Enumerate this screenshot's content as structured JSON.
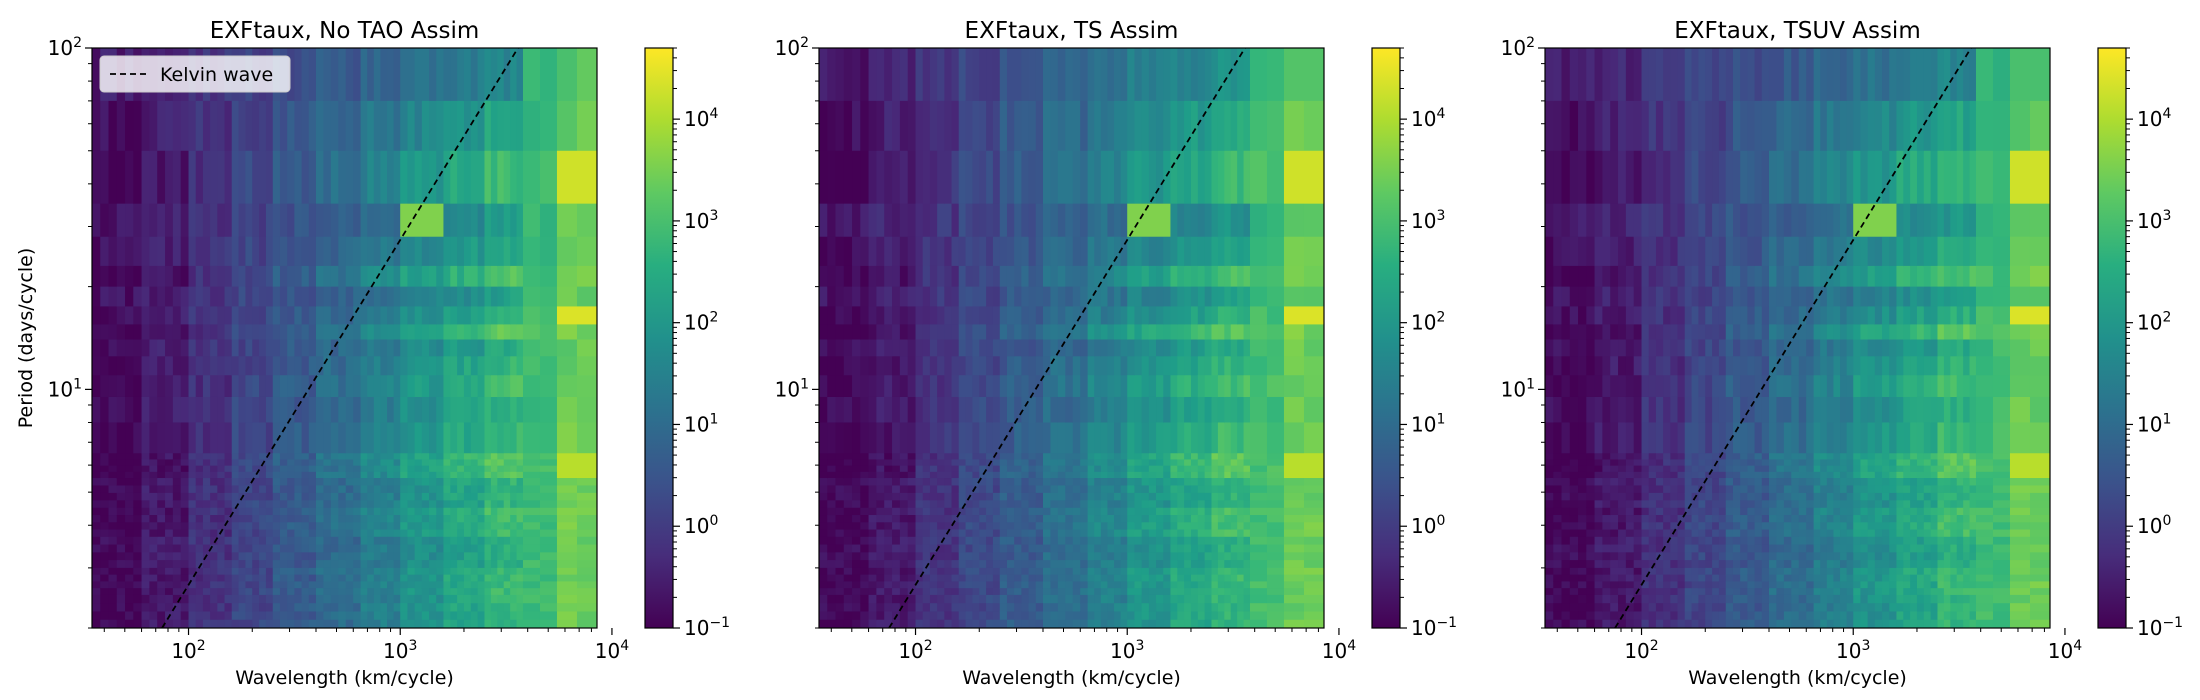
{
  "chart_data": [
    {
      "type": "heatmap",
      "title": "EXFtaux, No TAO Assim",
      "xlabel": "Wavelength (km/cycle)",
      "ylabel": "Period (days/cycle)",
      "x_scale": "log",
      "y_scale": "log",
      "xlim": [
        35,
        8500
      ],
      "ylim": [
        2,
        100
      ],
      "x_ticks": [
        {
          "value": 100,
          "base": "10",
          "exp": "2"
        },
        {
          "value": 1000,
          "base": "10",
          "exp": "3"
        },
        {
          "value": 10000,
          "base": "10",
          "exp": "4"
        }
      ],
      "y_ticks": [
        {
          "value": 10,
          "base": "10",
          "exp": "1"
        },
        {
          "value": 100,
          "base": "10",
          "exp": "2"
        }
      ],
      "kelvin_wave": {
        "label": "Kelvin wave",
        "x": [
          75,
          3600
        ],
        "y": [
          2,
          100
        ]
      },
      "legend_location": "upper left",
      "colorbar": {
        "scale": "log",
        "range": [
          0.1,
          50000
        ],
        "ticks": [
          {
            "value": 0.1,
            "base": "10",
            "exp": "−1"
          },
          {
            "value": 1,
            "base": "10",
            "exp": "0"
          },
          {
            "value": 10,
            "base": "10",
            "exp": "1"
          },
          {
            "value": 100,
            "base": "10",
            "exp": "2"
          },
          {
            "value": 1000,
            "base": "10",
            "exp": "3"
          },
          {
            "value": 10000,
            "base": "10",
            "exp": "4"
          }
        ]
      },
      "colormap": "viridis",
      "cells_note": "",
      "bands": [
        {
          "p_top": 100,
          "p_bottom": 70,
          "level": 0.6
        },
        {
          "p_top": 70,
          "p_bottom": 50,
          "level": 0.85
        },
        {
          "p_top": 50,
          "p_bottom": 35,
          "level": 1.05
        },
        {
          "p_top": 35,
          "p_bottom": 28,
          "level": 0.75
        },
        {
          "p_top": 28,
          "p_bottom": 23,
          "level": 0.9
        },
        {
          "p_top": 23,
          "p_bottom": 20,
          "level": 1.15
        },
        {
          "p_top": 20,
          "p_bottom": 17.5,
          "level": 0.8
        },
        {
          "p_top": 17.5,
          "p_bottom": 15.5,
          "level": 0.95
        },
        {
          "p_top": 15.5,
          "p_bottom": 14,
          "level": 1.2
        },
        {
          "p_top": 14,
          "p_bottom": 12.5,
          "level": 0.9
        },
        {
          "p_top": 12.5,
          "p_bottom": 11,
          "level": 1.0
        },
        {
          "p_top": 11,
          "p_bottom": 9.5,
          "level": 1.1
        },
        {
          "p_top": 9.5,
          "p_bottom": 8,
          "level": 0.95
        },
        {
          "p_top": 8,
          "p_bottom": 6.5,
          "level": 1.05
        },
        {
          "p_top": 6.5,
          "p_bottom": 5.5,
          "level": 1.2
        },
        {
          "p_top": 5.5,
          "p_bottom": 4.5,
          "level": 1.0
        },
        {
          "p_top": 4.5,
          "p_bottom": 3.7,
          "level": 1.1
        },
        {
          "p_top": 3.7,
          "p_bottom": 3.0,
          "level": 0.95
        },
        {
          "p_top": 3.0,
          "p_bottom": 2.5,
          "level": 1.05
        },
        {
          "p_top": 2.5,
          "p_bottom": 2.0,
          "level": 1.0
        }
      ],
      "columns": [
        {
          "wl_left": 35,
          "wl_right": 60,
          "level": -0.9
        },
        {
          "wl_left": 60,
          "wl_right": 100,
          "level": -0.6
        },
        {
          "wl_left": 100,
          "wl_right": 160,
          "level": -0.2
        },
        {
          "wl_left": 160,
          "wl_right": 250,
          "level": 0.2
        },
        {
          "wl_left": 250,
          "wl_right": 400,
          "level": 0.6
        },
        {
          "wl_left": 400,
          "wl_right": 650,
          "level": 1.0
        },
        {
          "wl_left": 650,
          "wl_right": 1000,
          "level": 1.45
        },
        {
          "wl_left": 1000,
          "wl_right": 1600,
          "level": 1.9
        },
        {
          "wl_left": 1600,
          "wl_right": 2500,
          "level": 2.3
        },
        {
          "wl_left": 2500,
          "wl_right": 3800,
          "level": 2.7
        },
        {
          "wl_left": 3800,
          "wl_right": 5500,
          "level": 2.9
        },
        {
          "wl_left": 5500,
          "wl_right": 8500,
          "level": 3.4
        }
      ],
      "bright_cells": [
        {
          "wl_left": 5500,
          "wl_right": 8500,
          "p_top": 50,
          "p_bottom": 35,
          "level": 4.3
        },
        {
          "wl_left": 5500,
          "wl_right": 8500,
          "p_top": 17.5,
          "p_bottom": 15.5,
          "level": 4.4
        },
        {
          "wl_left": 5500,
          "wl_right": 8500,
          "p_top": 6.5,
          "p_bottom": 5.5,
          "level": 4.1
        },
        {
          "wl_left": 1000,
          "wl_right": 1600,
          "p_top": 35,
          "p_bottom": 28,
          "level": 3.6
        }
      ]
    },
    {
      "type": "heatmap",
      "title": "EXFtaux, TS Assim",
      "xlabel": "Wavelength (km/cycle)",
      "ylabel": "",
      "x_scale": "log",
      "y_scale": "log",
      "xlim": [
        35,
        8500
      ],
      "ylim": [
        2,
        100
      ],
      "x_ticks": [
        {
          "value": 100,
          "base": "10",
          "exp": "2"
        },
        {
          "value": 1000,
          "base": "10",
          "exp": "3"
        },
        {
          "value": 10000,
          "base": "10",
          "exp": "4"
        }
      ],
      "y_ticks": [
        {
          "value": 10,
          "base": "10",
          "exp": "1"
        },
        {
          "value": 100,
          "base": "10",
          "exp": "2"
        }
      ],
      "kelvin_wave": {
        "label": "",
        "x": [
          75,
          3600
        ],
        "y": [
          2,
          100
        ]
      },
      "legend_location": "",
      "colorbar": {
        "scale": "log",
        "range": [
          0.1,
          50000
        ],
        "ticks": [
          {
            "value": 0.1,
            "base": "10",
            "exp": "−1"
          },
          {
            "value": 1,
            "base": "10",
            "exp": "0"
          },
          {
            "value": 10,
            "base": "10",
            "exp": "1"
          },
          {
            "value": 100,
            "base": "10",
            "exp": "2"
          },
          {
            "value": 1000,
            "base": "10",
            "exp": "3"
          },
          {
            "value": 10000,
            "base": "10",
            "exp": "4"
          }
        ]
      },
      "colormap": "viridis",
      "cells_note": "",
      "bands": [
        {
          "p_top": 100,
          "p_bottom": 70,
          "level": 0.7
        },
        {
          "p_top": 70,
          "p_bottom": 50,
          "level": 0.9
        },
        {
          "p_top": 50,
          "p_bottom": 35,
          "level": 1.05
        },
        {
          "p_top": 35,
          "p_bottom": 28,
          "level": 0.7
        },
        {
          "p_top": 28,
          "p_bottom": 23,
          "level": 0.85
        },
        {
          "p_top": 23,
          "p_bottom": 20,
          "level": 1.1
        },
        {
          "p_top": 20,
          "p_bottom": 17.5,
          "level": 0.8
        },
        {
          "p_top": 17.5,
          "p_bottom": 15.5,
          "level": 0.95
        },
        {
          "p_top": 15.5,
          "p_bottom": 14,
          "level": 1.2
        },
        {
          "p_top": 14,
          "p_bottom": 12.5,
          "level": 0.9
        },
        {
          "p_top": 12.5,
          "p_bottom": 11,
          "level": 1.0
        },
        {
          "p_top": 11,
          "p_bottom": 9.5,
          "level": 1.1
        },
        {
          "p_top": 9.5,
          "p_bottom": 8,
          "level": 0.95
        },
        {
          "p_top": 8,
          "p_bottom": 6.5,
          "level": 1.05
        },
        {
          "p_top": 6.5,
          "p_bottom": 5.5,
          "level": 1.2
        },
        {
          "p_top": 5.5,
          "p_bottom": 4.5,
          "level": 1.0
        },
        {
          "p_top": 4.5,
          "p_bottom": 3.7,
          "level": 1.1
        },
        {
          "p_top": 3.7,
          "p_bottom": 3.0,
          "level": 0.95
        },
        {
          "p_top": 3.0,
          "p_bottom": 2.5,
          "level": 1.05
        },
        {
          "p_top": 2.5,
          "p_bottom": 2.0,
          "level": 1.0
        }
      ],
      "columns": [
        {
          "wl_left": 35,
          "wl_right": 60,
          "level": -0.9
        },
        {
          "wl_left": 60,
          "wl_right": 100,
          "level": -0.6
        },
        {
          "wl_left": 100,
          "wl_right": 160,
          "level": -0.15
        },
        {
          "wl_left": 160,
          "wl_right": 250,
          "level": 0.25
        },
        {
          "wl_left": 250,
          "wl_right": 400,
          "level": 0.65
        },
        {
          "wl_left": 400,
          "wl_right": 650,
          "level": 1.05
        },
        {
          "wl_left": 650,
          "wl_right": 1000,
          "level": 1.5
        },
        {
          "wl_left": 1000,
          "wl_right": 1600,
          "level": 1.95
        },
        {
          "wl_left": 1600,
          "wl_right": 2500,
          "level": 2.35
        },
        {
          "wl_left": 2500,
          "wl_right": 3800,
          "level": 2.7
        },
        {
          "wl_left": 3800,
          "wl_right": 5500,
          "level": 2.95
        },
        {
          "wl_left": 5500,
          "wl_right": 8500,
          "level": 3.4
        }
      ],
      "bright_cells": [
        {
          "wl_left": 5500,
          "wl_right": 8500,
          "p_top": 50,
          "p_bottom": 35,
          "level": 4.3
        },
        {
          "wl_left": 5500,
          "wl_right": 8500,
          "p_top": 17.5,
          "p_bottom": 15.5,
          "level": 4.4
        },
        {
          "wl_left": 5500,
          "wl_right": 8500,
          "p_top": 6.5,
          "p_bottom": 5.5,
          "level": 4.1
        },
        {
          "wl_left": 1000,
          "wl_right": 1600,
          "p_top": 35,
          "p_bottom": 28,
          "level": 3.6
        }
      ]
    },
    {
      "type": "heatmap",
      "title": "EXFtaux, TSUV Assim",
      "xlabel": "Wavelength (km/cycle)",
      "ylabel": "",
      "x_scale": "log",
      "y_scale": "log",
      "xlim": [
        35,
        8500
      ],
      "ylim": [
        2,
        100
      ],
      "x_ticks": [
        {
          "value": 100,
          "base": "10",
          "exp": "2"
        },
        {
          "value": 1000,
          "base": "10",
          "exp": "3"
        },
        {
          "value": 10000,
          "base": "10",
          "exp": "4"
        }
      ],
      "y_ticks": [
        {
          "value": 10,
          "base": "10",
          "exp": "1"
        },
        {
          "value": 100,
          "base": "10",
          "exp": "2"
        }
      ],
      "kelvin_wave": {
        "label": "",
        "x": [
          75,
          3600
        ],
        "y": [
          2,
          100
        ]
      },
      "legend_location": "",
      "colorbar": {
        "scale": "log",
        "range": [
          0.1,
          50000
        ],
        "ticks": [
          {
            "value": 0.1,
            "base": "10",
            "exp": "−1"
          },
          {
            "value": 1,
            "base": "10",
            "exp": "0"
          },
          {
            "value": 10,
            "base": "10",
            "exp": "1"
          },
          {
            "value": 100,
            "base": "10",
            "exp": "2"
          },
          {
            "value": 1000,
            "base": "10",
            "exp": "3"
          },
          {
            "value": 10000,
            "base": "10",
            "exp": "4"
          }
        ]
      },
      "colormap": "viridis",
      "cells_note": "",
      "bands": [
        {
          "p_top": 100,
          "p_bottom": 70,
          "level": 0.6
        },
        {
          "p_top": 70,
          "p_bottom": 50,
          "level": 0.85
        },
        {
          "p_top": 50,
          "p_bottom": 35,
          "level": 1.05
        },
        {
          "p_top": 35,
          "p_bottom": 28,
          "level": 0.75
        },
        {
          "p_top": 28,
          "p_bottom": 23,
          "level": 0.9
        },
        {
          "p_top": 23,
          "p_bottom": 20,
          "level": 1.15
        },
        {
          "p_top": 20,
          "p_bottom": 17.5,
          "level": 0.8
        },
        {
          "p_top": 17.5,
          "p_bottom": 15.5,
          "level": 0.95
        },
        {
          "p_top": 15.5,
          "p_bottom": 14,
          "level": 1.2
        },
        {
          "p_top": 14,
          "p_bottom": 12.5,
          "level": 0.9
        },
        {
          "p_top": 12.5,
          "p_bottom": 11,
          "level": 1.0
        },
        {
          "p_top": 11,
          "p_bottom": 9.5,
          "level": 1.1
        },
        {
          "p_top": 9.5,
          "p_bottom": 8,
          "level": 0.95
        },
        {
          "p_top": 8,
          "p_bottom": 6.5,
          "level": 1.05
        },
        {
          "p_top": 6.5,
          "p_bottom": 5.5,
          "level": 1.2
        },
        {
          "p_top": 5.5,
          "p_bottom": 4.5,
          "level": 1.0
        },
        {
          "p_top": 4.5,
          "p_bottom": 3.7,
          "level": 1.1
        },
        {
          "p_top": 3.7,
          "p_bottom": 3.0,
          "level": 0.95
        },
        {
          "p_top": 3.0,
          "p_bottom": 2.5,
          "level": 1.05
        },
        {
          "p_top": 2.5,
          "p_bottom": 2.0,
          "level": 1.0
        }
      ],
      "columns": [
        {
          "wl_left": 35,
          "wl_right": 60,
          "level": -0.9
        },
        {
          "wl_left": 60,
          "wl_right": 100,
          "level": -0.6
        },
        {
          "wl_left": 100,
          "wl_right": 160,
          "level": -0.2
        },
        {
          "wl_left": 160,
          "wl_right": 250,
          "level": 0.2
        },
        {
          "wl_left": 250,
          "wl_right": 400,
          "level": 0.6
        },
        {
          "wl_left": 400,
          "wl_right": 650,
          "level": 1.0
        },
        {
          "wl_left": 650,
          "wl_right": 1000,
          "level": 1.45
        },
        {
          "wl_left": 1000,
          "wl_right": 1600,
          "level": 1.9
        },
        {
          "wl_left": 1600,
          "wl_right": 2500,
          "level": 2.3
        },
        {
          "wl_left": 2500,
          "wl_right": 3800,
          "level": 2.7
        },
        {
          "wl_left": 3800,
          "wl_right": 5500,
          "level": 2.9
        },
        {
          "wl_left": 5500,
          "wl_right": 8500,
          "level": 3.4
        }
      ],
      "bright_cells": [
        {
          "wl_left": 5500,
          "wl_right": 8500,
          "p_top": 50,
          "p_bottom": 35,
          "level": 4.3
        },
        {
          "wl_left": 5500,
          "wl_right": 8500,
          "p_top": 17.5,
          "p_bottom": 15.5,
          "level": 4.4
        },
        {
          "wl_left": 5500,
          "wl_right": 8500,
          "p_top": 6.5,
          "p_bottom": 5.5,
          "level": 4.1
        },
        {
          "wl_left": 1000,
          "wl_right": 1600,
          "p_top": 35,
          "p_bottom": 28,
          "level": 3.6
        }
      ]
    }
  ]
}
